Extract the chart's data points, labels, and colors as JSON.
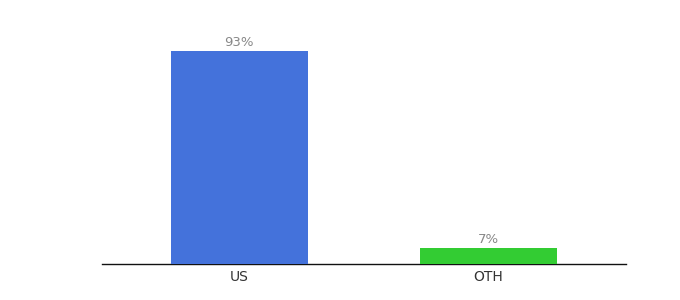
{
  "categories": [
    "US",
    "OTH"
  ],
  "values": [
    93,
    7
  ],
  "bar_colors": [
    "#4472db",
    "#33cc33"
  ],
  "labels": [
    "93%",
    "7%"
  ],
  "ylim": [
    0,
    105
  ],
  "background_color": "#ffffff",
  "label_fontsize": 9.5,
  "tick_fontsize": 10,
  "bar_width": 0.55,
  "x_positions": [
    0,
    1
  ],
  "xlim": [
    -0.55,
    1.55
  ]
}
